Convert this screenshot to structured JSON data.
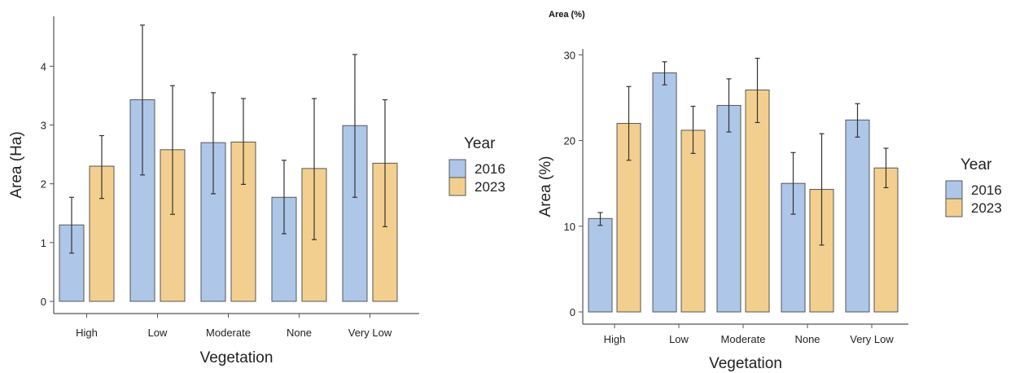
{
  "top_title": "Area (%)",
  "colors": {
    "2016": "#aec6e8",
    "2023": "#f3cf8f",
    "bar_stroke": "#555555",
    "axis": "#555555",
    "error": "#333333"
  },
  "chart_data": [
    {
      "type": "bar",
      "xlabel": "Vegetation",
      "ylabel": "Area (Ha)",
      "ylim": [
        0,
        4.85
      ],
      "yticks": [
        0,
        1,
        2,
        3,
        4
      ],
      "ytick_labels": [
        "0",
        "1",
        "2",
        "3",
        "4"
      ],
      "grid": false,
      "legend_title": "Year",
      "legend_position": "right",
      "categories": [
        "High",
        "Low",
        "Moderate",
        "None",
        "Very Low"
      ],
      "series": [
        {
          "name": "2016",
          "values": [
            1.3,
            3.43,
            2.7,
            1.77,
            2.99
          ],
          "err_low": [
            0.82,
            2.15,
            1.83,
            1.15,
            1.77
          ],
          "err_high": [
            1.77,
            4.7,
            3.55,
            2.4,
            4.2
          ]
        },
        {
          "name": "2023",
          "values": [
            2.3,
            2.58,
            2.71,
            2.26,
            2.35
          ],
          "err_low": [
            1.75,
            1.48,
            1.99,
            1.05,
            1.27
          ],
          "err_high": [
            2.82,
            3.67,
            3.45,
            3.45,
            3.43
          ]
        }
      ]
    },
    {
      "type": "bar",
      "xlabel": "Vegetation",
      "ylabel": "Area (%)",
      "ylim": [
        0,
        30.7
      ],
      "yticks": [
        0,
        10,
        20,
        30
      ],
      "ytick_labels": [
        "0",
        "10",
        "20",
        "30"
      ],
      "grid": false,
      "legend_title": "Year",
      "legend_position": "right",
      "categories": [
        "High",
        "Low",
        "Moderate",
        "None",
        "Very Low"
      ],
      "series": [
        {
          "name": "2016",
          "values": [
            10.9,
            27.9,
            24.1,
            15.0,
            22.4
          ],
          "err_low": [
            10.1,
            26.5,
            21.0,
            11.4,
            20.4
          ],
          "err_high": [
            11.6,
            29.2,
            27.2,
            18.6,
            24.3
          ]
        },
        {
          "name": "2023",
          "values": [
            22.0,
            21.2,
            25.9,
            14.3,
            16.8
          ],
          "err_low": [
            17.7,
            18.5,
            22.1,
            7.8,
            14.5
          ],
          "err_high": [
            26.3,
            24.0,
            29.6,
            20.8,
            19.1
          ]
        }
      ]
    }
  ]
}
